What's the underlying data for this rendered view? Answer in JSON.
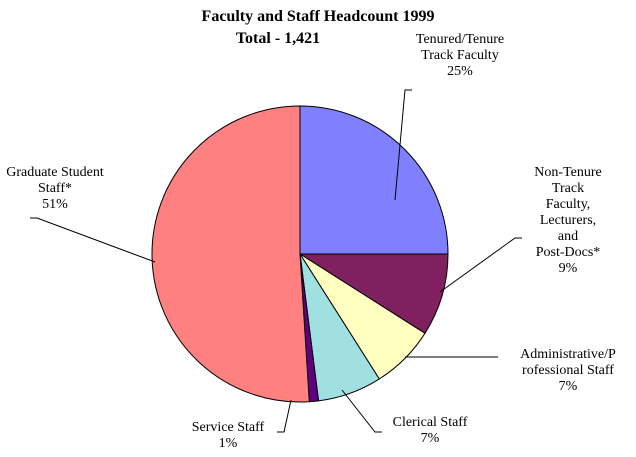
{
  "chart_data": {
    "type": "pie",
    "title": "Faculty and Staff Headcount 1999",
    "subtitle": "Total - 1,421",
    "categories": [
      "Tenured/Tenure\nTrack Faculty",
      "Non-Tenure\nTrack Faculty,\nLecturers, and\nPost-Docs*",
      "Administrative/P\nrofessional Staff",
      "Clerical Staff",
      "Service Staff",
      "Graduate Student\nStaff*"
    ],
    "values": [
      25,
      9,
      7,
      7,
      1,
      51
    ],
    "value_labels": [
      "25%",
      "9%",
      "7%",
      "7%",
      "1%",
      "51%"
    ],
    "colors": [
      "#8080ff",
      "#802060",
      "#ffffc0",
      "#a0e0e0",
      "#600080",
      "#ff8080"
    ]
  }
}
